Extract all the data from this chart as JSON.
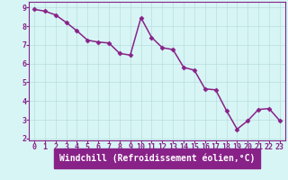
{
  "x": [
    0,
    1,
    2,
    3,
    4,
    5,
    6,
    7,
    8,
    9,
    10,
    11,
    12,
    13,
    14,
    15,
    16,
    17,
    18,
    19,
    20,
    21,
    22,
    23
  ],
  "y": [
    8.9,
    8.8,
    8.6,
    8.2,
    7.75,
    7.25,
    7.15,
    7.1,
    6.55,
    6.45,
    8.45,
    7.4,
    6.85,
    6.75,
    5.8,
    5.65,
    4.65,
    4.6,
    3.5,
    2.5,
    2.95,
    3.55,
    3.6,
    2.95
  ],
  "line_color": "#882288",
  "marker": "D",
  "marker_size": 2.5,
  "bg_color": "#d8f5f5",
  "grid_color": "#b8dede",
  "xlabel": "Windchill (Refroidissement éolien,°C)",
  "ylim": [
    1.9,
    9.3
  ],
  "xlim": [
    -0.5,
    23.5
  ],
  "yticks": [
    2,
    3,
    4,
    5,
    6,
    7,
    8,
    9
  ],
  "xticks": [
    0,
    1,
    2,
    3,
    4,
    5,
    6,
    7,
    8,
    9,
    10,
    11,
    12,
    13,
    14,
    15,
    16,
    17,
    18,
    19,
    20,
    21,
    22,
    23
  ],
  "tick_label_color": "#882288",
  "axis_color": "#882288",
  "xlabel_color": "#ffffff",
  "xlabel_bg_color": "#882288",
  "xlabel_fontsize": 7.0,
  "tick_fontsize": 6.0,
  "linewidth": 1.1
}
